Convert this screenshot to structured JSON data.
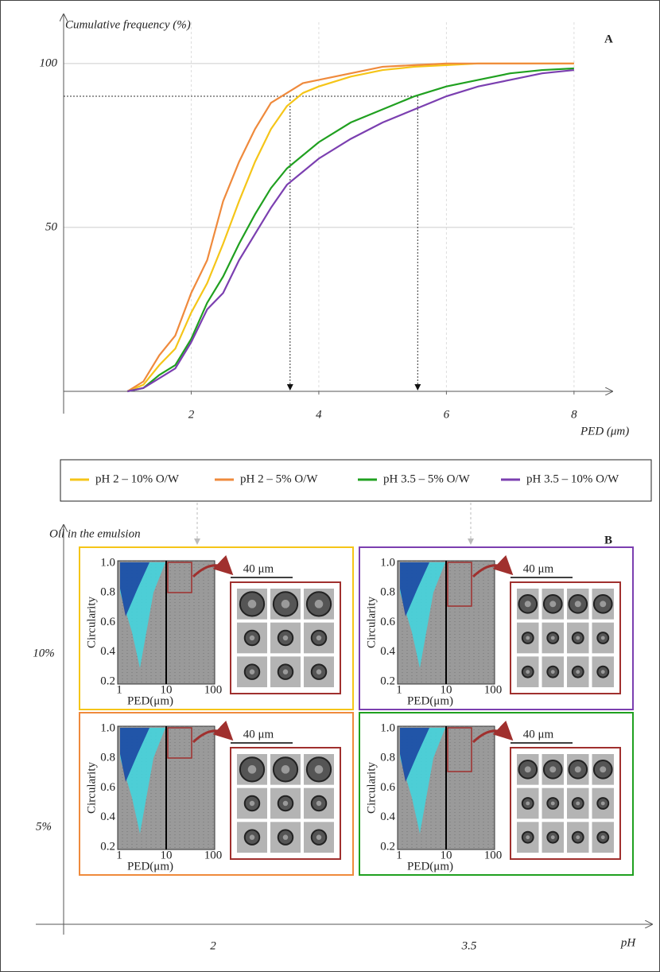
{
  "chart_data": {
    "type": "line",
    "panel_label": "A",
    "y_label": "Cumulative frequency (%)",
    "x_label": "PED (μm)",
    "xlim": [
      0,
      8.6
    ],
    "ylim": [
      0,
      115
    ],
    "xticks": [
      2,
      4,
      6,
      8
    ],
    "yticks": [
      50,
      100
    ],
    "grid": true,
    "x": [
      1,
      1.25,
      1.5,
      1.75,
      2,
      2.25,
      2.5,
      2.75,
      3,
      3.25,
      3.5,
      3.75,
      4,
      4.5,
      5,
      5.5,
      6,
      6.5,
      7,
      7.5,
      8
    ],
    "series": [
      {
        "name": "pH 2 – 10% O/W",
        "color": "#f5c518",
        "values": [
          0,
          2,
          8,
          13,
          24,
          33,
          45,
          58,
          70,
          80,
          87,
          91,
          93,
          96,
          98,
          99,
          99.5,
          100,
          100,
          100,
          100
        ]
      },
      {
        "name": "pH 2 – 5% O/W",
        "color": "#ef8a3c",
        "values": [
          0,
          3,
          11,
          17,
          30,
          40,
          58,
          70,
          80,
          88,
          91,
          94,
          95,
          97,
          99,
          99.5,
          100,
          100,
          100,
          100,
          100
        ]
      },
      {
        "name": "pH 3.5 – 5% O/W",
        "color": "#20a020",
        "values": [
          0,
          1,
          5,
          8,
          16,
          27,
          35,
          45,
          54,
          62,
          68,
          72,
          76,
          82,
          86,
          90,
          93,
          95,
          97,
          98,
          98.5
        ]
      },
      {
        "name": "pH 3.5 – 10% O/W",
        "color": "#7b3fb0",
        "values": [
          0,
          1,
          4,
          7,
          15,
          25,
          30,
          40,
          48,
          56,
          63,
          67,
          71,
          77,
          82,
          86,
          90,
          93,
          95,
          97,
          98
        ]
      }
    ],
    "reference_lines": {
      "y": 90,
      "x": [
        3.55,
        5.55
      ]
    }
  },
  "panel_b": {
    "label": "B",
    "y_label": "Oil in the emulsion",
    "x_label": "pH",
    "rows": [
      "10%",
      "5%"
    ],
    "columns": [
      "2",
      "3.5"
    ],
    "panels": [
      {
        "color": "#f5c518"
      },
      {
        "color": "#7b3fb0"
      },
      {
        "color": "#ef8a3c"
      },
      {
        "color": "#20a020"
      }
    ],
    "inset": {
      "y_label": "Circularity",
      "x_label": "PED(μm)",
      "yticks": [
        "1.0",
        "0.8",
        "0.6",
        "0.4",
        "0.2"
      ],
      "xticks": [
        "1",
        "10",
        "100"
      ],
      "scale_bar": "40 μm"
    }
  }
}
